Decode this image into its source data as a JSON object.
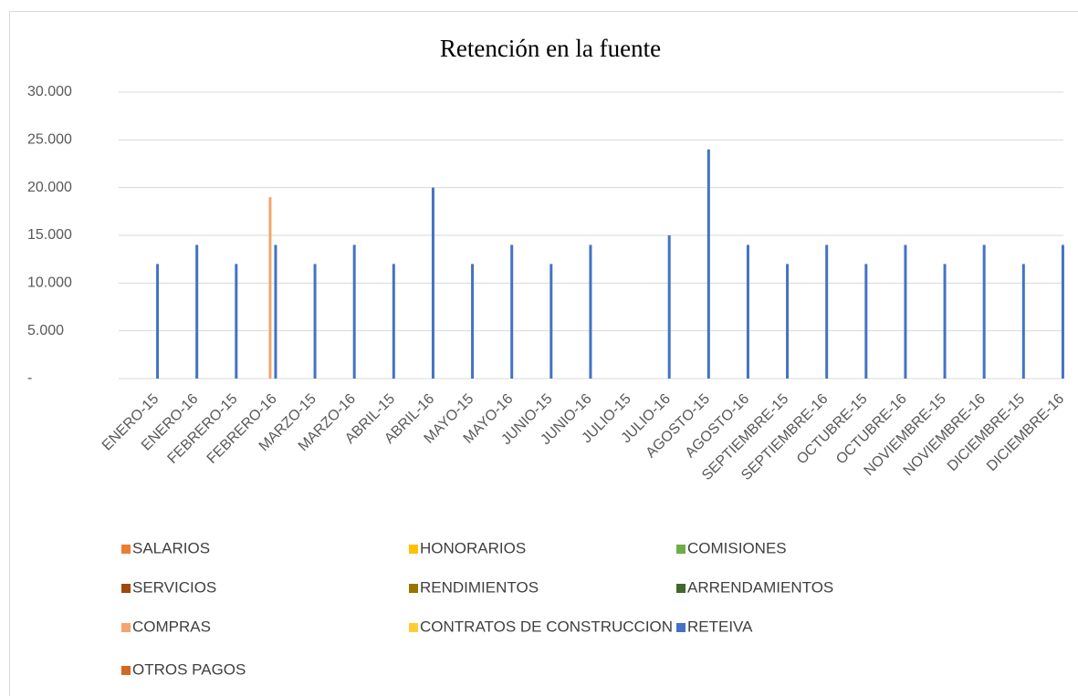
{
  "chart_data": {
    "type": "bar",
    "title": "Retención en la fuente",
    "categories": [
      "ENERO-15",
      "ENERO-16",
      "FEBRERO-15",
      "FEBRERO-16",
      "MARZO-15",
      "MARZO-16",
      "ABRIL-15",
      "ABRIL-16",
      "MAYO-15",
      "MAYO-16",
      "JUNIO-15",
      "JUNIO-16",
      "JULIO-15",
      "JULIO-16",
      "AGOSTO-15",
      "AGOSTO-16",
      "SEPTIEMBRE-15",
      "SEPTIEMBRE-16",
      "OCTUBRE-15",
      "OCTUBRE-16",
      "NOVIEMBRE-15",
      "NOVIEMBRE-16",
      "DICIEMBRE-15",
      "DICIEMBRE-16"
    ],
    "series": [
      {
        "name": "SALARIOS",
        "color": "#ED7D31",
        "values": [
          0,
          0,
          0,
          0,
          0,
          0,
          0,
          0,
          0,
          0,
          0,
          0,
          0,
          0,
          0,
          0,
          0,
          0,
          0,
          0,
          0,
          0,
          0,
          0
        ]
      },
      {
        "name": "HONORARIOS",
        "color": "#FFC000",
        "values": [
          0,
          0,
          0,
          0,
          0,
          0,
          0,
          0,
          0,
          0,
          0,
          0,
          0,
          0,
          0,
          0,
          0,
          0,
          0,
          0,
          0,
          0,
          0,
          0
        ]
      },
      {
        "name": "COMISIONES",
        "color": "#70AD47",
        "values": [
          0,
          0,
          0,
          0,
          0,
          0,
          0,
          0,
          0,
          0,
          0,
          0,
          0,
          0,
          0,
          0,
          0,
          0,
          0,
          0,
          0,
          0,
          0,
          0
        ]
      },
      {
        "name": "SERVICIOS",
        "color": "#9E480E",
        "values": [
          0,
          0,
          0,
          0,
          0,
          0,
          0,
          0,
          0,
          0,
          0,
          0,
          0,
          0,
          0,
          0,
          0,
          0,
          0,
          0,
          0,
          0,
          0,
          0
        ]
      },
      {
        "name": "RENDIMIENTOS",
        "color": "#997300",
        "values": [
          0,
          0,
          0,
          0,
          0,
          0,
          0,
          0,
          0,
          0,
          0,
          0,
          0,
          0,
          0,
          0,
          0,
          0,
          0,
          0,
          0,
          0,
          0,
          0
        ]
      },
      {
        "name": "ARRENDAMIENTOS",
        "color": "#43682B",
        "values": [
          0,
          0,
          0,
          0,
          0,
          0,
          0,
          0,
          0,
          0,
          0,
          0,
          0,
          0,
          0,
          0,
          0,
          0,
          0,
          0,
          0,
          0,
          0,
          0
        ]
      },
      {
        "name": "COMPRAS",
        "color": "#F4A46C",
        "values": [
          0,
          0,
          0,
          19000,
          0,
          0,
          0,
          0,
          0,
          0,
          0,
          0,
          0,
          0,
          0,
          0,
          0,
          0,
          0,
          0,
          0,
          0,
          0,
          0
        ]
      },
      {
        "name": "CONTRATOS DE CONSTRUCCION",
        "color": "#FFCD33",
        "values": [
          0,
          0,
          0,
          0,
          0,
          0,
          0,
          0,
          0,
          0,
          0,
          0,
          0,
          0,
          0,
          0,
          0,
          0,
          0,
          0,
          0,
          0,
          0,
          0
        ]
      },
      {
        "name": "RETEIVA",
        "color": "#4472C4",
        "values": [
          12000,
          14000,
          12000,
          14000,
          12000,
          14000,
          12000,
          20000,
          12000,
          14000,
          12000,
          14000,
          0,
          15000,
          24000,
          14000,
          12000,
          14000,
          12000,
          14000,
          12000,
          14000,
          12000,
          14000
        ]
      },
      {
        "name": "OTROS PAGOS",
        "color": "#D2691E",
        "values": [
          0,
          0,
          0,
          0,
          0,
          0,
          0,
          0,
          0,
          0,
          0,
          0,
          0,
          0,
          0,
          0,
          0,
          0,
          0,
          0,
          0,
          0,
          0,
          0
        ]
      }
    ],
    "ylim": [
      0,
      30000
    ],
    "yticks": [
      {
        "value": 0,
        "label": "-"
      },
      {
        "value": 5000,
        "label": "5.000"
      },
      {
        "value": 10000,
        "label": "10.000"
      },
      {
        "value": 15000,
        "label": "15.000"
      },
      {
        "value": 20000,
        "label": "20.000"
      },
      {
        "value": 25000,
        "label": "25.000"
      },
      {
        "value": 30000,
        "label": "30.000"
      }
    ],
    "grid": true
  }
}
